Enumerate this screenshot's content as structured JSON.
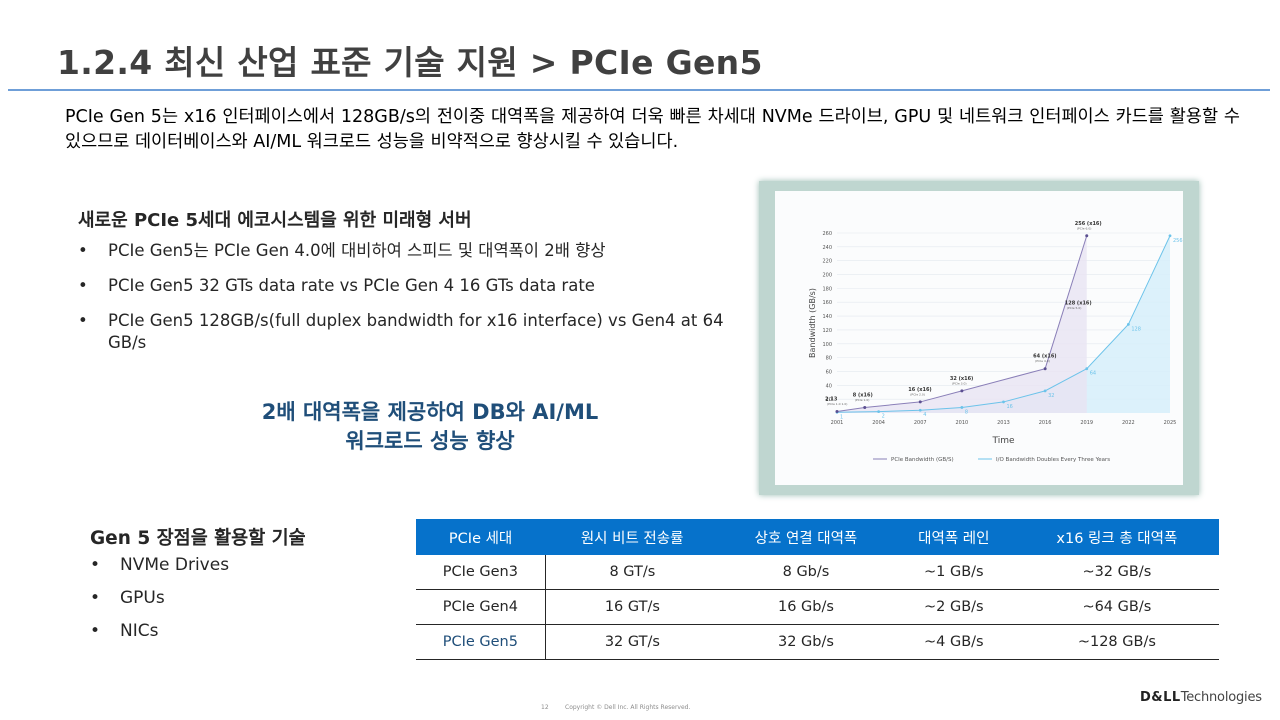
{
  "slide": {
    "title": "1.2.4 최신 산업 표준 기술 지원 > PCIe Gen5",
    "intro": "PCIe Gen 5는 x16 인터페이스에서 128GB/s의 전이중 대역폭을 제공하여 더욱 빠른 차세대 NVMe 드라이브, GPU 및 네트워크 인터페이스 카드를 활용할 수 있으므로 데이터베이스와 AI/ML 워크로드 성능을 비약적으로 향상시킬 수 있습니다.",
    "section1": {
      "heading": "새로운 PCIe 5세대 에코시스템을 위한 미래형 서버",
      "bullets": [
        "PCIe Gen5는 PCIe Gen 4.0에 대비하여 스피드 및 대역폭이 2배 향상",
        "PCIe Gen5 32 GTs data rate vs PCIe Gen 4 16 GTs data rate",
        "PCIe Gen5 128GB/s(full duplex bandwidth for x16 interface) vs Gen4 at 64 GB/s"
      ]
    },
    "callout": {
      "line1": "2배 대역폭을 제공하여 DB와 AI/ML",
      "line2": "워크로드 성능 향상"
    },
    "section2": {
      "heading": "Gen 5 장점을 활용할 기술",
      "bullets": [
        "NVMe Drives",
        "GPUs",
        "NICs"
      ]
    },
    "table": {
      "headers": [
        "PCIe 세대",
        "원시 비트 전송률",
        "상호 연결 대역폭",
        "대역폭 레인",
        "x16 링크 총 대역폭"
      ],
      "rows": [
        [
          "PCIe Gen3",
          "8 GT/s",
          "8 Gb/s",
          "~1 GB/s",
          "~32 GB/s"
        ],
        [
          "PCIe Gen4",
          "16 GT/s",
          "16 Gb/s",
          "~2 GB/s",
          "~64 GB/s"
        ],
        [
          "PCIe Gen5",
          "32 GT/s",
          "32 Gb/s",
          "~4 GB/s",
          "~128 GB/s"
        ]
      ]
    },
    "footer": {
      "page": "12",
      "copyright": "Copyright © Dell Inc. All Rights Reserved.",
      "logo_bold": "D&LL",
      "logo_rest": "Technologies"
    }
  },
  "chart_data": {
    "type": "line",
    "ylabel": "Bandwidth (GB/s)",
    "xlabel": "Time",
    "ylim": [
      0,
      260
    ],
    "y_ticks": [
      20,
      40,
      60,
      80,
      100,
      120,
      140,
      160,
      180,
      200,
      220,
      240,
      260
    ],
    "x_ticks": [
      "2001",
      "2004",
      "2007",
      "2010",
      "2013",
      "2016",
      "2019",
      "2022",
      "2025"
    ],
    "series": [
      {
        "name": "PCIe Bandwidth (GB/S)",
        "color": "#8a7fb8",
        "x": [
          2001,
          2003,
          2007,
          2010,
          2016,
          2019
        ],
        "y": [
          2.13,
          8,
          16,
          32,
          64,
          256
        ],
        "labels": [
          "2.13",
          "8 (x16)",
          "16 (x16)",
          "32 (x16)",
          "64 (x16)",
          "256 (x16)"
        ],
        "sublabels": [
          "(PCIe 1.0 1.0)",
          "(PCIe 1.0)",
          "(PCIe 2.0)",
          "(PCIe 3.0)",
          "(PCIe 4.0)",
          "(PCIe 6.0)"
        ]
      },
      {
        "name": "I/O Bandwidth Doubles Every Three Years",
        "color": "#6cc3ea",
        "x": [
          2001,
          2004,
          2007,
          2010,
          2013,
          2016,
          2019,
          2022,
          2025
        ],
        "y": [
          1,
          2,
          4,
          8,
          16,
          32,
          64,
          128,
          256
        ],
        "labels": [
          "1",
          "2",
          "4",
          "8",
          "16",
          "32",
          "64",
          "128",
          "256"
        ]
      }
    ],
    "extra_labels": [
      {
        "x": 2019,
        "y": 128,
        "text": "128 (x16)",
        "sub": "(PCIe 5.0)"
      }
    ],
    "colors": {
      "accent": "#0672cb",
      "callout": "#1f4e79",
      "rule": "#6f9fd8"
    }
  }
}
